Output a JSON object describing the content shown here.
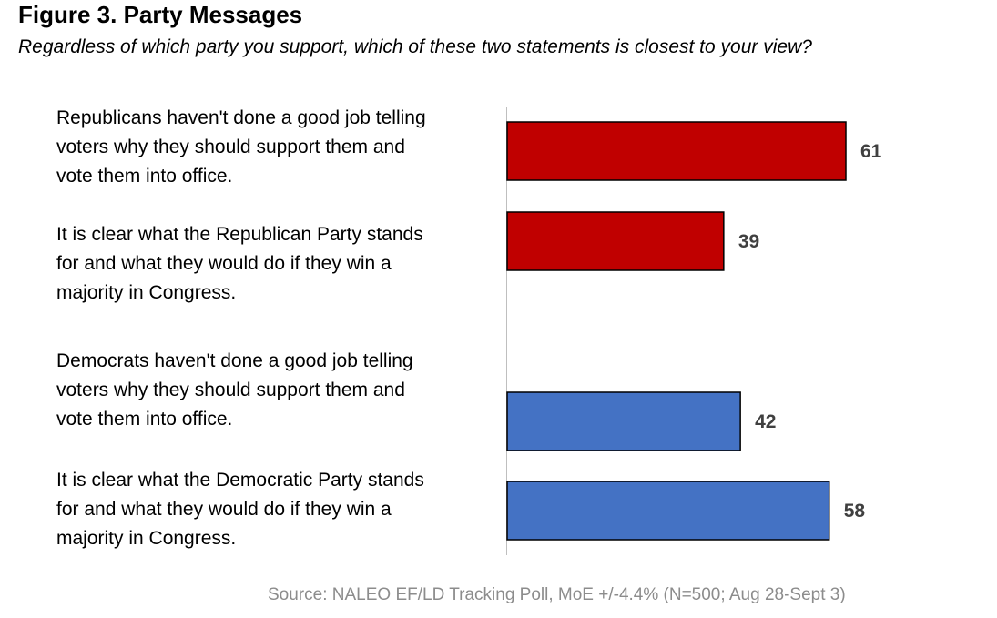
{
  "title": "Figure 3. Party Messages",
  "subtitle": "Regardless of which party you support, which of these two statements is closest to your view?",
  "source": "Source: NALEO EF/LD Tracking Poll, MoE +/-4.4% (N=500; Aug 28-Sept 3)",
  "chart_data": {
    "type": "bar",
    "orientation": "horizontal",
    "title": "Figure 3. Party Messages",
    "subtitle": "Regardless of which party you support, which of these two statements is closest to your view?",
    "categories": [
      [
        "Republicans haven't done a good job telling",
        "voters why they should support them and",
        "vote them into office."
      ],
      [
        "It is clear what the Republican Party stands",
        "for and what they would do if they win a",
        "majority in Congress."
      ],
      [
        "Democrats haven't done a good job telling",
        "voters why they should support them and",
        "vote them into office."
      ],
      [
        "It is clear what the Democratic Party stands",
        "for and what they would do if they win a",
        "majority in Congress."
      ]
    ],
    "values": [
      61,
      39,
      42,
      58
    ],
    "colors": [
      "#c00000",
      "#c00000",
      "#4472c4",
      "#4472c4"
    ],
    "xlim": [
      0,
      85
    ],
    "grid": false,
    "data_labels": true,
    "legend": "none"
  }
}
